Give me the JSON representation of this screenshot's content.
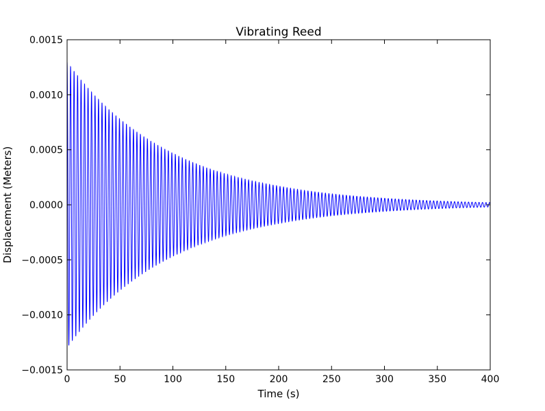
{
  "chart_data": {
    "type": "line",
    "title": "Vibrating Reed",
    "xlabel": "Time (s)",
    "ylabel": "Displacement (Meters)",
    "xlim": [
      0,
      400
    ],
    "ylim": [
      -0.0015,
      0.0015
    ],
    "xticks": [
      0,
      50,
      100,
      150,
      200,
      250,
      300,
      350,
      400
    ],
    "xtick_labels": [
      "0",
      "50",
      "100",
      "150",
      "200",
      "250",
      "300",
      "350",
      "400"
    ],
    "yticks": [
      -0.0015,
      -0.001,
      -0.0005,
      0,
      0.0005,
      0.001,
      0.0015
    ],
    "ytick_labels": [
      "−0.0015",
      "−0.0010",
      "−0.0005",
      "0.0000",
      "0.0005",
      "0.0010",
      "0.0015"
    ],
    "grid": false,
    "legend": "none",
    "series": [
      {
        "color": "#0000ff",
        "envelope": {
          "t": [
            0,
            50,
            100,
            150,
            200,
            250,
            300,
            350,
            400
          ],
          "amplitude": [
            0.0013,
            0.00078,
            0.00047,
            0.00028,
            0.00017,
            0.0001,
            6e-05,
            3.5e-05,
            2e-05
          ]
        },
        "oscillation_period_s": 3.3
      }
    ]
  }
}
